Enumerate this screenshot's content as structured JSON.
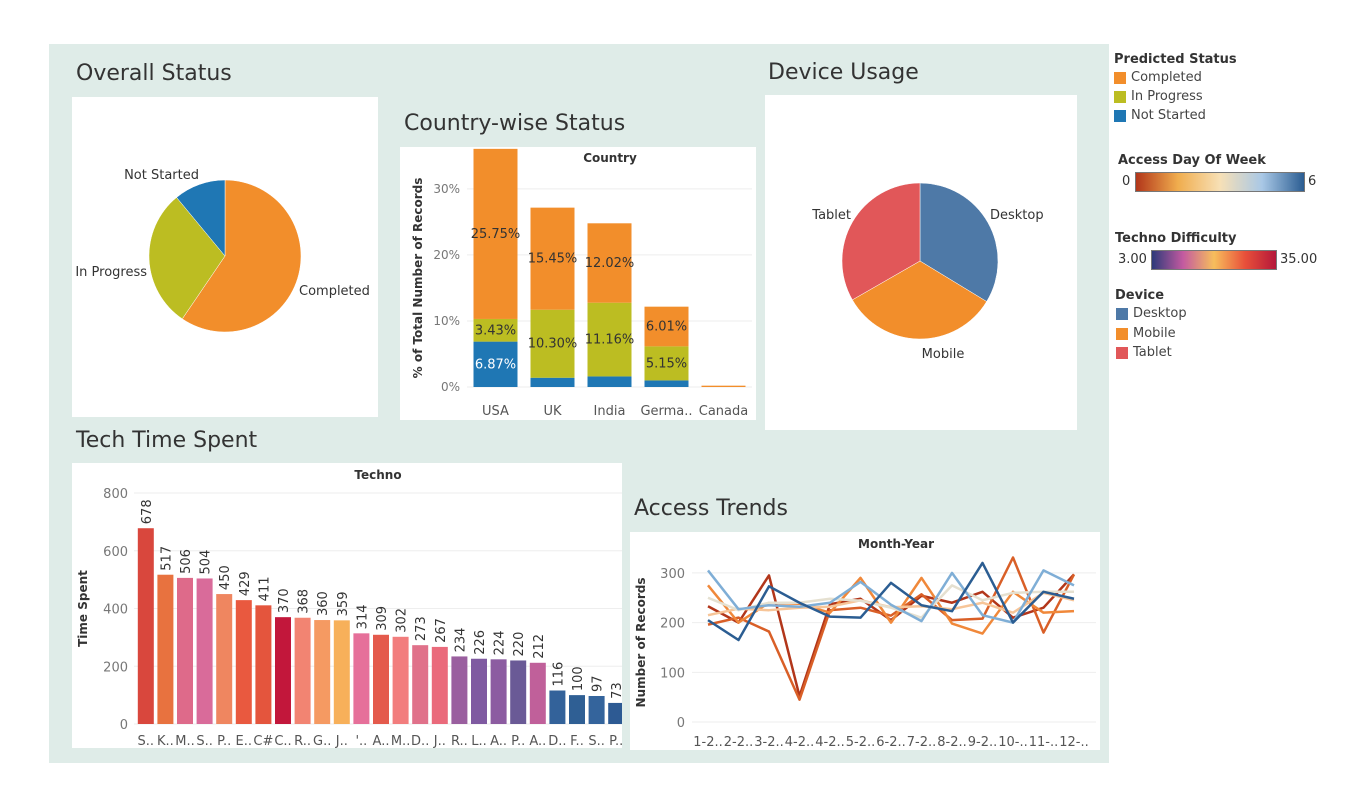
{
  "titles": {
    "overall": "Overall Status",
    "country": "Country-wise Status",
    "device": "Device Usage",
    "tech": "Tech Time Spent",
    "access": "Access Trends"
  },
  "legend": {
    "predicted_status": {
      "title": "Predicted Status",
      "items": [
        {
          "label": "Completed",
          "color": "#f28e2b"
        },
        {
          "label": "In Progress",
          "color": "#bcbd22"
        },
        {
          "label": "Not Started",
          "color": "#1f77b4"
        }
      ]
    },
    "access_day": {
      "title": "Access Day Of Week",
      "min": "0",
      "max": "6",
      "colors": [
        "#b2361a",
        "#f0ad4e",
        "#f7e0b6",
        "#a9c8e6",
        "#2b5d92"
      ]
    },
    "techno_difficulty": {
      "title": "Techno Difficulty",
      "min": "3.00",
      "max": "35.00",
      "colors": [
        "#2d3a7a",
        "#c35aa0",
        "#f7be5c",
        "#e8503a",
        "#b5173a"
      ]
    },
    "device": {
      "title": "Device",
      "items": [
        {
          "label": "Desktop",
          "color": "#4e79a7"
        },
        {
          "label": "Mobile",
          "color": "#f28e2b"
        },
        {
          "label": "Tablet",
          "color": "#e15759"
        }
      ]
    }
  },
  "chart_data": [
    {
      "id": "overall",
      "type": "pie",
      "title": "",
      "slices": [
        {
          "label": "Completed",
          "value": 59.5,
          "color": "#f28e2b"
        },
        {
          "label": "In Progress",
          "value": 29.5,
          "color": "#bcbd22"
        },
        {
          "label": "Not Started",
          "value": 11.0,
          "color": "#1f77b4"
        }
      ]
    },
    {
      "id": "country",
      "type": "bar",
      "title": "Country",
      "ylabel": "% of Total Number of Records",
      "ylim": [
        0,
        33
      ],
      "yticks": [
        0,
        10,
        20,
        30
      ],
      "ytick_labels": [
        "0%",
        "10%",
        "20%",
        "30%"
      ],
      "categories": [
        "USA",
        "UK",
        "India",
        "Germa..",
        "Canada"
      ],
      "series": [
        {
          "name": "Not Started",
          "color": "#1f77b4",
          "values": [
            6.87,
            1.4,
            1.6,
            1.0,
            0.0
          ]
        },
        {
          "name": "In Progress",
          "color": "#bcbd22",
          "values": [
            3.43,
            10.3,
            11.16,
            5.15,
            0.0
          ]
        },
        {
          "name": "Completed",
          "color": "#f28e2b",
          "values": [
            25.75,
            15.45,
            12.02,
            6.01,
            0.2
          ]
        }
      ],
      "data_labels": [
        {
          "cat": 0,
          "series": 0,
          "text": "6.87%"
        },
        {
          "cat": 0,
          "series": 1,
          "text": "3.43%"
        },
        {
          "cat": 0,
          "series": 2,
          "text": "25.75%"
        },
        {
          "cat": 1,
          "series": 1,
          "text": "10.30%"
        },
        {
          "cat": 1,
          "series": 2,
          "text": "15.45%"
        },
        {
          "cat": 2,
          "series": 1,
          "text": "11.16%"
        },
        {
          "cat": 2,
          "series": 2,
          "text": "12.02%"
        },
        {
          "cat": 3,
          "series": 1,
          "text": "5.15%"
        },
        {
          "cat": 3,
          "series": 2,
          "text": "6.01%"
        }
      ],
      "grid": true
    },
    {
      "id": "device",
      "type": "pie",
      "title": "",
      "slices": [
        {
          "label": "Desktop",
          "value": 33.7,
          "color": "#4e79a7"
        },
        {
          "label": "Mobile",
          "value": 33.0,
          "color": "#f28e2b"
        },
        {
          "label": "Tablet",
          "value": 33.3,
          "color": "#e15759"
        }
      ]
    },
    {
      "id": "tech",
      "type": "bar",
      "title": "Techno",
      "ylabel": "Time Spent",
      "ylim": [
        0,
        800
      ],
      "yticks": [
        0,
        200,
        400,
        600,
        800
      ],
      "categories": [
        "S..",
        "K..",
        "M..",
        "S..",
        "P..",
        "E..",
        "C#",
        "C..",
        "R..",
        "G..",
        "J..",
        "'..",
        "A..",
        "M..",
        "D..",
        "J..",
        "R..",
        "L..",
        "A..",
        "P..",
        "A..",
        "D..",
        "F..",
        "S..",
        "P.."
      ],
      "values": [
        678,
        517,
        506,
        504,
        450,
        429,
        411,
        370,
        368,
        360,
        359,
        314,
        309,
        302,
        273,
        267,
        234,
        226,
        224,
        220,
        212,
        116,
        100,
        97,
        73
      ],
      "colors": [
        "#d9473d",
        "#e8723f",
        "#de6a8a",
        "#d96b9a",
        "#ef8660",
        "#e9593f",
        "#e4553d",
        "#c2173b",
        "#f28472",
        "#f59a62",
        "#f7b05a",
        "#e6709a",
        "#e45a4c",
        "#f27d7d",
        "#e0718a",
        "#ea6a7b",
        "#9a5f9f",
        "#7f5aa1",
        "#8c5ca1",
        "#6a5a96",
        "#c0609a",
        "#33629a",
        "#2f5f94",
        "#34649c",
        "#2d5a93"
      ],
      "grid": true
    },
    {
      "id": "access",
      "type": "line",
      "title": "Month-Year",
      "ylabel": "Number of Records",
      "ylim": [
        -10,
        330
      ],
      "yticks": [
        0,
        100,
        200,
        300
      ],
      "categories": [
        "1-2..",
        "2-2..",
        "3-2..",
        "4-2..",
        "4-2..",
        "5-2..",
        "6-2..",
        "7-2..",
        "8-2..",
        "9-2..",
        "10-..",
        "11-..",
        "12-.."
      ],
      "series": [
        {
          "color": "#b2361a",
          "values": [
            233,
            200,
            295,
            52,
            237,
            248,
            205,
            254,
            240,
            262,
            210,
            230,
            297
          ]
        },
        {
          "color": "#d95f27",
          "values": [
            196,
            210,
            182,
            45,
            225,
            230,
            214,
            257,
            205,
            208,
            331,
            180,
            297
          ]
        },
        {
          "color": "#f0883a",
          "values": [
            275,
            200,
            240,
            238,
            220,
            290,
            200,
            290,
            198,
            178,
            262,
            220,
            223
          ]
        },
        {
          "color": "#f7c598",
          "values": [
            215,
            228,
            225,
            230,
            232,
            245,
            231,
            233,
            227,
            240,
            220,
            260,
            245
          ]
        },
        {
          "color": "#e5e0d0",
          "values": [
            250,
            225,
            240,
            240,
            248,
            244,
            230,
            210,
            275,
            245,
            260,
            262,
            262
          ]
        },
        {
          "color": "#7faed6",
          "values": [
            305,
            227,
            235,
            232,
            240,
            282,
            236,
            203,
            300,
            215,
            200,
            305,
            275
          ]
        },
        {
          "color": "#2b5d92",
          "values": [
            205,
            165,
            273,
            240,
            212,
            210,
            280,
            235,
            223,
            320,
            200,
            262,
            248
          ]
        }
      ],
      "grid": true
    }
  ]
}
